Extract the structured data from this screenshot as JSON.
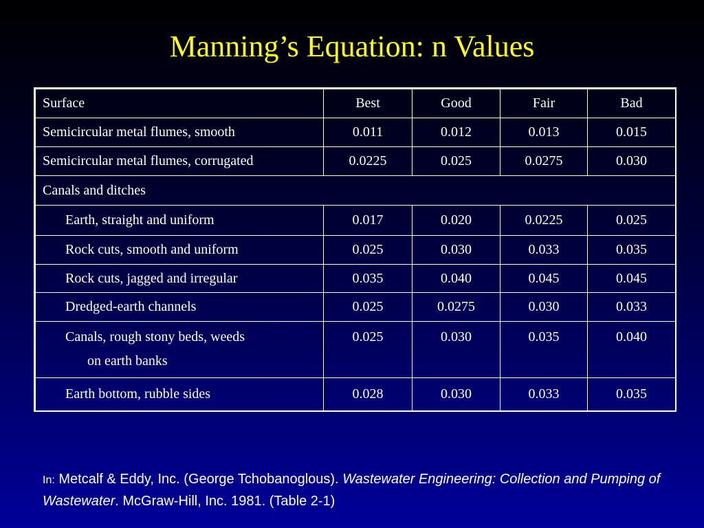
{
  "title": "Manning’s Equation: n Values",
  "table": {
    "header": {
      "surface": "Surface",
      "best": "Best",
      "good": "Good",
      "fair": "Fair",
      "bad": "Bad"
    },
    "rows": [
      {
        "label": "Semicircular metal flumes, smooth",
        "best": "0.011",
        "good": "0.012",
        "fair": "0.013",
        "bad": "0.015"
      },
      {
        "label": "Semicircular metal flumes, corrugated",
        "best": "0.0225",
        "good": "0.025",
        "fair": "0.0275",
        "bad": "0.030"
      }
    ],
    "section": "Canals and ditches",
    "sub_rows": [
      {
        "label": "Earth, straight and uniform",
        "best": "0.017",
        "good": "0.020",
        "fair": "0.0225",
        "bad": "0.025"
      },
      {
        "label": "Rock cuts, smooth and uniform",
        "best": "0.025",
        "good": "0.030",
        "fair": "0.033",
        "bad": "0.035"
      },
      {
        "label": "Rock cuts, jagged and irregular",
        "best": "0.035",
        "good": "0.040",
        "fair": "0.045",
        "bad": "0.045"
      },
      {
        "label": "Dredged-earth channels",
        "best": "0.025",
        "good": "0.0275",
        "fair": "0.030",
        "bad": "0.033"
      },
      {
        "label": "Canals, rough stony beds, weeds",
        "label_cont": "on earth banks",
        "best": "0.025",
        "good": "0.030",
        "fair": "0.035",
        "bad": "0.040"
      },
      {
        "label": "Earth bottom, rubble sides",
        "best": "0.028",
        "good": "0.030",
        "fair": "0.033",
        "bad": "0.035"
      }
    ]
  },
  "citation": {
    "prefix": "In:",
    "authors": "Metcalf & Eddy, Inc. (George Tchobanoglous).",
    "book_title": "Wastewater Engineering: Collection and Pumping of Wastewater",
    "publisher": ". McGraw-Hill, Inc. 1981. (Table 2-1)"
  },
  "colors": {
    "title": "#ffff00",
    "text": "#ffffff",
    "background_top": "#000000",
    "background_bottom": "#00009a"
  }
}
